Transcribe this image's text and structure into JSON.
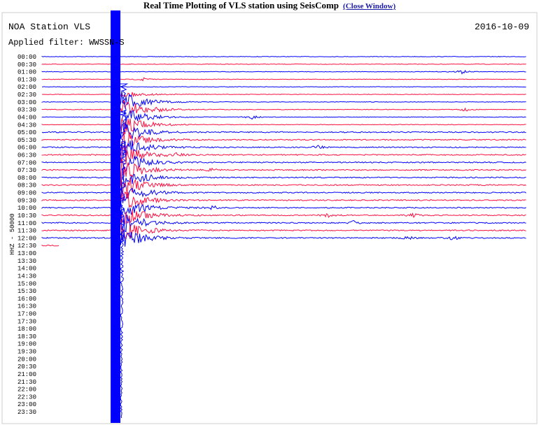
{
  "header": {
    "title": "Real Time Plotting of VLS station using SeisComp",
    "link": "(Close Window)"
  },
  "plot": {
    "station": "NOA Station VLS",
    "date": "2016-10-09",
    "filter": "Applied filter: WWSSN-S",
    "channel": "HHZ - 50000",
    "time_labels": [
      "00:00",
      "00:30",
      "01:00",
      "01:30",
      "02:00",
      "02:30",
      "03:00",
      "03:30",
      "04:00",
      "04:30",
      "05:00",
      "05:30",
      "06:00",
      "06:30",
      "07:00",
      "07:30",
      "08:00",
      "08:30",
      "09:00",
      "09:30",
      "10:00",
      "10:30",
      "11:00",
      "11:30",
      "12:00",
      "12:30",
      "13:00",
      "13:30",
      "14:00",
      "14:30",
      "15:00",
      "15:30",
      "16:00",
      "16:30",
      "17:00",
      "17:30",
      "18:00",
      "18:30",
      "19:00",
      "19:30",
      "20:00",
      "20:30",
      "21:00",
      "21:30",
      "22:00",
      "22:30",
      "23:00",
      "23:30"
    ]
  }
}
